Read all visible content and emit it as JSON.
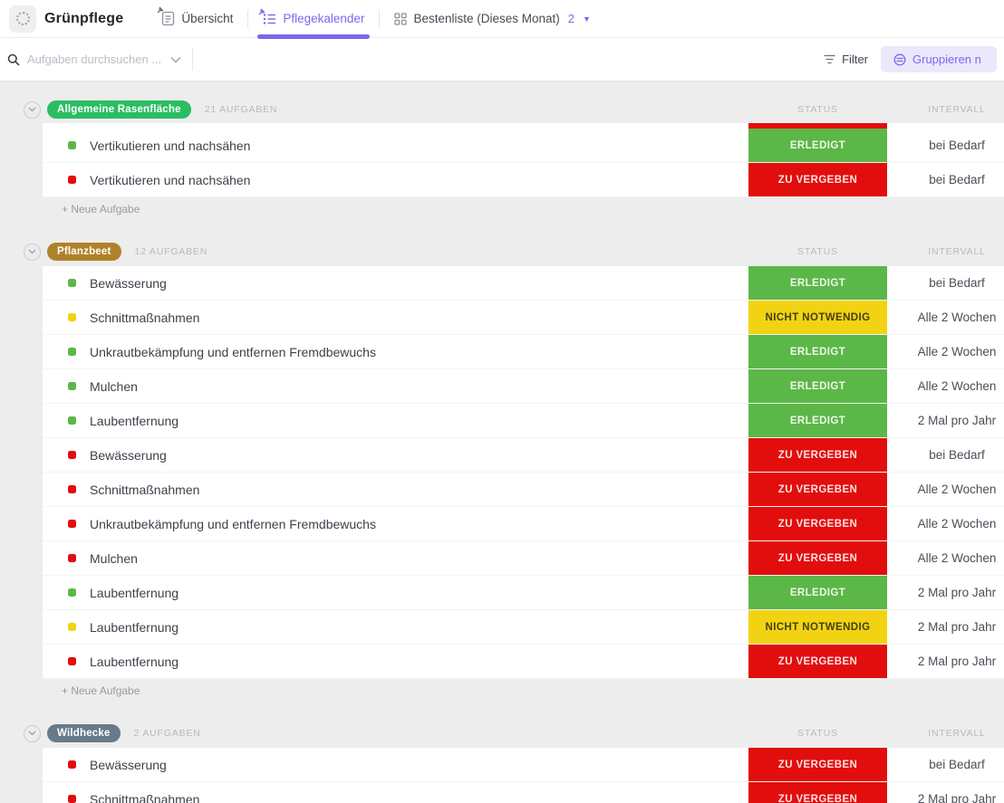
{
  "header": {
    "workspace_title": "Grünpflege",
    "tabs": [
      {
        "label": "Übersicht",
        "icon": "document-icon",
        "active": false
      },
      {
        "label": "Pflegekalender",
        "icon": "list-icon",
        "active": true
      },
      {
        "label": "Bestenliste (Dieses Monat)",
        "icon": "grid-icon",
        "active": false,
        "badge": "2"
      }
    ]
  },
  "toolbar": {
    "search_placeholder": "Aufgaben durchsuchen ...",
    "filter_label": "Filter",
    "group_by_label": "Gruppieren n"
  },
  "columns": {
    "status": "STATUS",
    "intervall": "INTERVALL"
  },
  "list": {
    "new_task_label": "+ Neue Aufgabe"
  },
  "statuses": {
    "done": {
      "label": "ERLEDIGT",
      "bg": "#5bb748",
      "fg": "#eef8e8"
    },
    "open": {
      "label": "ZU VERGEBEN",
      "bg": "#e20d0d",
      "fg": "#ffe2e2"
    },
    "skip": {
      "label": "NICHT NOTWENDIG",
      "bg": "#f2d313",
      "fg": "#43400f"
    }
  },
  "groups": [
    {
      "name": "Allgemeine Rasenfläche",
      "color": "#2abd62",
      "count_label": "21 AUFGABEN",
      "peek_status": "open",
      "tasks": [
        {
          "name": "Vertikutieren und nachsähen",
          "status": "done",
          "interval": "bei Bedarf"
        },
        {
          "name": "Vertikutieren und nachsähen",
          "status": "open",
          "interval": "bei Bedarf"
        }
      ]
    },
    {
      "name": "Pflanzbeet",
      "color": "#b0812b",
      "count_label": "12 AUFGABEN",
      "tasks": [
        {
          "name": "Bewässerung",
          "status": "done",
          "interval": "bei Bedarf"
        },
        {
          "name": "Schnittmaßnahmen",
          "status": "skip",
          "interval": "Alle 2 Wochen"
        },
        {
          "name": "Unkrautbekämpfung und entfernen Fremdbewuchs",
          "status": "done",
          "interval": "Alle 2 Wochen"
        },
        {
          "name": "Mulchen",
          "status": "done",
          "interval": "Alle 2 Wochen"
        },
        {
          "name": "Laubentfernung",
          "status": "done",
          "interval": "2 Mal pro Jahr"
        },
        {
          "name": "Bewässerung",
          "status": "open",
          "interval": "bei Bedarf"
        },
        {
          "name": "Schnittmaßnahmen",
          "status": "open",
          "interval": "Alle 2 Wochen"
        },
        {
          "name": "Unkrautbekämpfung und entfernen Fremdbewuchs",
          "status": "open",
          "interval": "Alle 2 Wochen"
        },
        {
          "name": "Mulchen",
          "status": "open",
          "interval": "Alle 2 Wochen"
        },
        {
          "name": "Laubentfernung",
          "status": "done",
          "interval": "2 Mal pro Jahr"
        },
        {
          "name": "Laubentfernung",
          "status": "skip",
          "interval": "2 Mal pro Jahr"
        },
        {
          "name": "Laubentfernung",
          "status": "open",
          "interval": "2 Mal pro Jahr"
        }
      ]
    },
    {
      "name": "Wildhecke",
      "color": "#68798a",
      "count_label": "2 AUFGABEN",
      "tasks": [
        {
          "name": "Bewässerung",
          "status": "open",
          "interval": "bei Bedarf"
        },
        {
          "name": "Schnittmaßnahmen",
          "status": "open",
          "interval": "2 Mal pro Jahr"
        }
      ]
    }
  ]
}
